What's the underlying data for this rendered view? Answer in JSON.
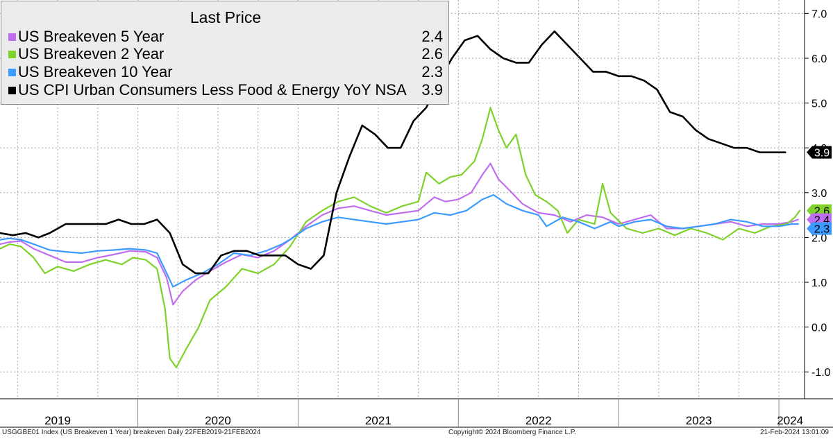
{
  "chart_data": {
    "type": "line",
    "title": "",
    "xlabel": "",
    "ylabel": "",
    "ylim": [
      -1.6,
      7.3
    ],
    "yticks": [
      -1.0,
      0.0,
      1.0,
      2.0,
      3.0,
      4.0,
      5.0,
      6.0,
      7.0
    ],
    "ytick_labels": [
      "-1.0",
      "0.0",
      "1.0",
      "2.0",
      "3.0",
      "4.0",
      "5.0",
      "6.0",
      "7.0"
    ],
    "xlim": [
      2019.14,
      2024.16
    ],
    "year_labels": [
      {
        "label": "2019",
        "x": 2019.5
      },
      {
        "label": "2020",
        "x": 2020.5
      },
      {
        "label": "2021",
        "x": 2021.5
      },
      {
        "label": "2022",
        "x": 2022.5
      },
      {
        "label": "2023",
        "x": 2023.5
      },
      {
        "label": "2024",
        "x": 2024.07
      }
    ],
    "year_boundaries": [
      2020.0,
      2021.0,
      2022.0,
      2023.0,
      2024.0
    ],
    "grid": true,
    "legend_position": "top-left",
    "legend_title": "Last Price",
    "series": [
      {
        "name": "US Breakeven 5 Year",
        "color": "#c06ef0",
        "last_value": "2.4",
        "points": [
          [
            2019.14,
            1.85
          ],
          [
            2019.2,
            1.9
          ],
          [
            2019.27,
            1.92
          ],
          [
            2019.35,
            1.75
          ],
          [
            2019.45,
            1.6
          ],
          [
            2019.55,
            1.45
          ],
          [
            2019.65,
            1.45
          ],
          [
            2019.75,
            1.55
          ],
          [
            2019.85,
            1.62
          ],
          [
            2019.95,
            1.7
          ],
          [
            2020.05,
            1.68
          ],
          [
            2020.12,
            1.55
          ],
          [
            2020.18,
            1.1
          ],
          [
            2020.22,
            0.5
          ],
          [
            2020.28,
            0.8
          ],
          [
            2020.36,
            1.05
          ],
          [
            2020.45,
            1.25
          ],
          [
            2020.55,
            1.45
          ],
          [
            2020.65,
            1.62
          ],
          [
            2020.75,
            1.55
          ],
          [
            2020.85,
            1.7
          ],
          [
            2020.95,
            1.95
          ],
          [
            2021.05,
            2.25
          ],
          [
            2021.15,
            2.5
          ],
          [
            2021.25,
            2.65
          ],
          [
            2021.35,
            2.7
          ],
          [
            2021.45,
            2.6
          ],
          [
            2021.55,
            2.5
          ],
          [
            2021.65,
            2.55
          ],
          [
            2021.75,
            2.6
          ],
          [
            2021.85,
            2.9
          ],
          [
            2021.92,
            2.8
          ],
          [
            2022.0,
            2.85
          ],
          [
            2022.08,
            3.0
          ],
          [
            2022.15,
            3.4
          ],
          [
            2022.2,
            3.65
          ],
          [
            2022.25,
            3.3
          ],
          [
            2022.32,
            3.05
          ],
          [
            2022.4,
            2.75
          ],
          [
            2022.5,
            2.55
          ],
          [
            2022.6,
            2.5
          ],
          [
            2022.7,
            2.35
          ],
          [
            2022.8,
            2.5
          ],
          [
            2022.9,
            2.45
          ],
          [
            2023.0,
            2.3
          ],
          [
            2023.1,
            2.4
          ],
          [
            2023.2,
            2.5
          ],
          [
            2023.3,
            2.2
          ],
          [
            2023.4,
            2.2
          ],
          [
            2023.5,
            2.25
          ],
          [
            2023.6,
            2.3
          ],
          [
            2023.7,
            2.35
          ],
          [
            2023.8,
            2.25
          ],
          [
            2023.9,
            2.3
          ],
          [
            2024.0,
            2.3
          ],
          [
            2024.08,
            2.35
          ],
          [
            2024.12,
            2.4
          ]
        ]
      },
      {
        "name": "US Breakeven 2 Year",
        "color": "#7fd12b",
        "last_value": "2.6",
        "points": [
          [
            2019.14,
            1.75
          ],
          [
            2019.2,
            1.85
          ],
          [
            2019.27,
            1.8
          ],
          [
            2019.35,
            1.55
          ],
          [
            2019.42,
            1.2
          ],
          [
            2019.5,
            1.35
          ],
          [
            2019.6,
            1.25
          ],
          [
            2019.7,
            1.4
          ],
          [
            2019.8,
            1.5
          ],
          [
            2019.9,
            1.4
          ],
          [
            2019.97,
            1.55
          ],
          [
            2020.05,
            1.5
          ],
          [
            2020.12,
            1.3
          ],
          [
            2020.17,
            0.4
          ],
          [
            2020.2,
            -0.7
          ],
          [
            2020.24,
            -0.9
          ],
          [
            2020.3,
            -0.5
          ],
          [
            2020.38,
            0.0
          ],
          [
            2020.45,
            0.6
          ],
          [
            2020.55,
            0.9
          ],
          [
            2020.65,
            1.3
          ],
          [
            2020.75,
            1.2
          ],
          [
            2020.85,
            1.4
          ],
          [
            2020.95,
            1.8
          ],
          [
            2021.05,
            2.35
          ],
          [
            2021.15,
            2.6
          ],
          [
            2021.25,
            2.8
          ],
          [
            2021.35,
            2.9
          ],
          [
            2021.45,
            2.7
          ],
          [
            2021.55,
            2.55
          ],
          [
            2021.65,
            2.7
          ],
          [
            2021.75,
            2.8
          ],
          [
            2021.8,
            3.45
          ],
          [
            2021.88,
            3.2
          ],
          [
            2021.95,
            3.35
          ],
          [
            2022.02,
            3.4
          ],
          [
            2022.1,
            3.7
          ],
          [
            2022.15,
            4.2
          ],
          [
            2022.2,
            4.9
          ],
          [
            2022.25,
            4.4
          ],
          [
            2022.3,
            4.0
          ],
          [
            2022.36,
            4.3
          ],
          [
            2022.42,
            3.4
          ],
          [
            2022.48,
            2.95
          ],
          [
            2022.55,
            2.8
          ],
          [
            2022.62,
            2.6
          ],
          [
            2022.68,
            2.1
          ],
          [
            2022.75,
            2.4
          ],
          [
            2022.85,
            2.3
          ],
          [
            2022.9,
            3.2
          ],
          [
            2022.95,
            2.55
          ],
          [
            2023.05,
            2.2
          ],
          [
            2023.15,
            2.1
          ],
          [
            2023.25,
            2.2
          ],
          [
            2023.35,
            2.05
          ],
          [
            2023.45,
            2.2
          ],
          [
            2023.55,
            2.1
          ],
          [
            2023.65,
            1.95
          ],
          [
            2023.75,
            2.2
          ],
          [
            2023.85,
            2.1
          ],
          [
            2023.95,
            2.25
          ],
          [
            2024.05,
            2.3
          ],
          [
            2024.1,
            2.45
          ],
          [
            2024.13,
            2.6
          ]
        ]
      },
      {
        "name": "US Breakeven 10 Year",
        "color": "#3d9aff",
        "last_value": "2.3",
        "points": [
          [
            2019.14,
            1.95
          ],
          [
            2019.2,
            1.98
          ],
          [
            2019.27,
            1.95
          ],
          [
            2019.35,
            1.85
          ],
          [
            2019.45,
            1.72
          ],
          [
            2019.55,
            1.68
          ],
          [
            2019.65,
            1.65
          ],
          [
            2019.75,
            1.7
          ],
          [
            2019.85,
            1.72
          ],
          [
            2019.95,
            1.75
          ],
          [
            2020.05,
            1.72
          ],
          [
            2020.12,
            1.65
          ],
          [
            2020.18,
            1.2
          ],
          [
            2020.22,
            0.9
          ],
          [
            2020.3,
            1.05
          ],
          [
            2020.4,
            1.2
          ],
          [
            2020.5,
            1.4
          ],
          [
            2020.6,
            1.65
          ],
          [
            2020.7,
            1.6
          ],
          [
            2020.8,
            1.7
          ],
          [
            2020.9,
            1.85
          ],
          [
            2020.97,
            2.0
          ],
          [
            2021.05,
            2.2
          ],
          [
            2021.15,
            2.35
          ],
          [
            2021.25,
            2.45
          ],
          [
            2021.35,
            2.4
          ],
          [
            2021.45,
            2.35
          ],
          [
            2021.55,
            2.3
          ],
          [
            2021.65,
            2.35
          ],
          [
            2021.75,
            2.4
          ],
          [
            2021.85,
            2.55
          ],
          [
            2021.95,
            2.5
          ],
          [
            2022.05,
            2.6
          ],
          [
            2022.15,
            2.85
          ],
          [
            2022.22,
            2.95
          ],
          [
            2022.3,
            2.75
          ],
          [
            2022.4,
            2.6
          ],
          [
            2022.5,
            2.5
          ],
          [
            2022.55,
            2.25
          ],
          [
            2022.65,
            2.45
          ],
          [
            2022.75,
            2.35
          ],
          [
            2022.85,
            2.2
          ],
          [
            2022.95,
            2.35
          ],
          [
            2023.0,
            2.25
          ],
          [
            2023.1,
            2.35
          ],
          [
            2023.2,
            2.4
          ],
          [
            2023.3,
            2.25
          ],
          [
            2023.4,
            2.2
          ],
          [
            2023.5,
            2.25
          ],
          [
            2023.6,
            2.3
          ],
          [
            2023.7,
            2.4
          ],
          [
            2023.8,
            2.35
          ],
          [
            2023.9,
            2.25
          ],
          [
            2024.0,
            2.25
          ],
          [
            2024.08,
            2.3
          ],
          [
            2024.12,
            2.3
          ]
        ]
      },
      {
        "name": "US CPI Urban Consumers Less Food & Energy YoY NSA",
        "color": "#000000",
        "last_value": "3.9",
        "points": [
          [
            2019.14,
            2.1
          ],
          [
            2019.22,
            2.05
          ],
          [
            2019.3,
            2.1
          ],
          [
            2019.38,
            2.0
          ],
          [
            2019.45,
            2.1
          ],
          [
            2019.55,
            2.3
          ],
          [
            2019.63,
            2.3
          ],
          [
            2019.72,
            2.3
          ],
          [
            2019.8,
            2.3
          ],
          [
            2019.88,
            2.4
          ],
          [
            2019.96,
            2.3
          ],
          [
            2020.04,
            2.3
          ],
          [
            2020.12,
            2.4
          ],
          [
            2020.2,
            2.1
          ],
          [
            2020.28,
            1.4
          ],
          [
            2020.36,
            1.2
          ],
          [
            2020.44,
            1.2
          ],
          [
            2020.52,
            1.6
          ],
          [
            2020.6,
            1.7
          ],
          [
            2020.68,
            1.7
          ],
          [
            2020.76,
            1.6
          ],
          [
            2020.84,
            1.6
          ],
          [
            2020.92,
            1.6
          ],
          [
            2021.0,
            1.4
          ],
          [
            2021.08,
            1.3
          ],
          [
            2021.16,
            1.6
          ],
          [
            2021.24,
            3.0
          ],
          [
            2021.32,
            3.8
          ],
          [
            2021.4,
            4.5
          ],
          [
            2021.48,
            4.3
          ],
          [
            2021.56,
            4.0
          ],
          [
            2021.64,
            4.0
          ],
          [
            2021.72,
            4.6
          ],
          [
            2021.8,
            4.9
          ],
          [
            2021.88,
            5.5
          ],
          [
            2021.96,
            6.0
          ],
          [
            2022.04,
            6.4
          ],
          [
            2022.12,
            6.5
          ],
          [
            2022.2,
            6.2
          ],
          [
            2022.28,
            6.0
          ],
          [
            2022.36,
            5.9
          ],
          [
            2022.44,
            5.9
          ],
          [
            2022.52,
            6.3
          ],
          [
            2022.6,
            6.6
          ],
          [
            2022.68,
            6.3
          ],
          [
            2022.76,
            6.0
          ],
          [
            2022.84,
            5.7
          ],
          [
            2022.92,
            5.7
          ],
          [
            2023.0,
            5.6
          ],
          [
            2023.08,
            5.6
          ],
          [
            2023.16,
            5.5
          ],
          [
            2023.24,
            5.3
          ],
          [
            2023.32,
            4.8
          ],
          [
            2023.4,
            4.7
          ],
          [
            2023.48,
            4.4
          ],
          [
            2023.56,
            4.2
          ],
          [
            2023.64,
            4.1
          ],
          [
            2023.72,
            4.0
          ],
          [
            2023.8,
            4.0
          ],
          [
            2023.88,
            3.9
          ],
          [
            2023.96,
            3.9
          ],
          [
            2024.04,
            3.9
          ]
        ]
      }
    ],
    "end_labels": [
      {
        "series": "US CPI Urban Consumers Less Food & Energy YoY NSA",
        "text": "3.9",
        "value": 3.9,
        "bg": "#000000",
        "fg": "#ffffff"
      },
      {
        "series": "US Breakeven 2 Year",
        "text": "2.6",
        "value": 2.6,
        "bg": "#7fd12b",
        "fg": "#000000"
      },
      {
        "series": "US Breakeven 5 Year",
        "text": "2.4",
        "value": 2.4,
        "bg": "#c06ef0",
        "fg": "#000000"
      },
      {
        "series": "US Breakeven 10 Year",
        "text": "2.3",
        "value": 2.3,
        "bg": "#3d9aff",
        "fg": "#000000"
      }
    ]
  },
  "legend": {
    "title": "Last Price",
    "items": [
      {
        "label": "US Breakeven 5 Year",
        "value": "2.4",
        "color": "#c06ef0"
      },
      {
        "label": "US Breakeven 2 Year",
        "value": "2.6",
        "color": "#7fd12b"
      },
      {
        "label": "US Breakeven 10 Year",
        "value": "2.3",
        "color": "#3d9aff"
      },
      {
        "label": "US CPI Urban Consumers Less Food & Energy YoY NSA",
        "value": "3.9",
        "color": "#000000"
      }
    ]
  },
  "footer": {
    "left": "USGGBE01 Index (US Breakeven 1 Year) breakeven  Daily 22FEB2019-21FEB2024",
    "center": "Copyright© 2024 Bloomberg Finance L.P.",
    "right": "21-Feb-2024 13:01:09"
  }
}
